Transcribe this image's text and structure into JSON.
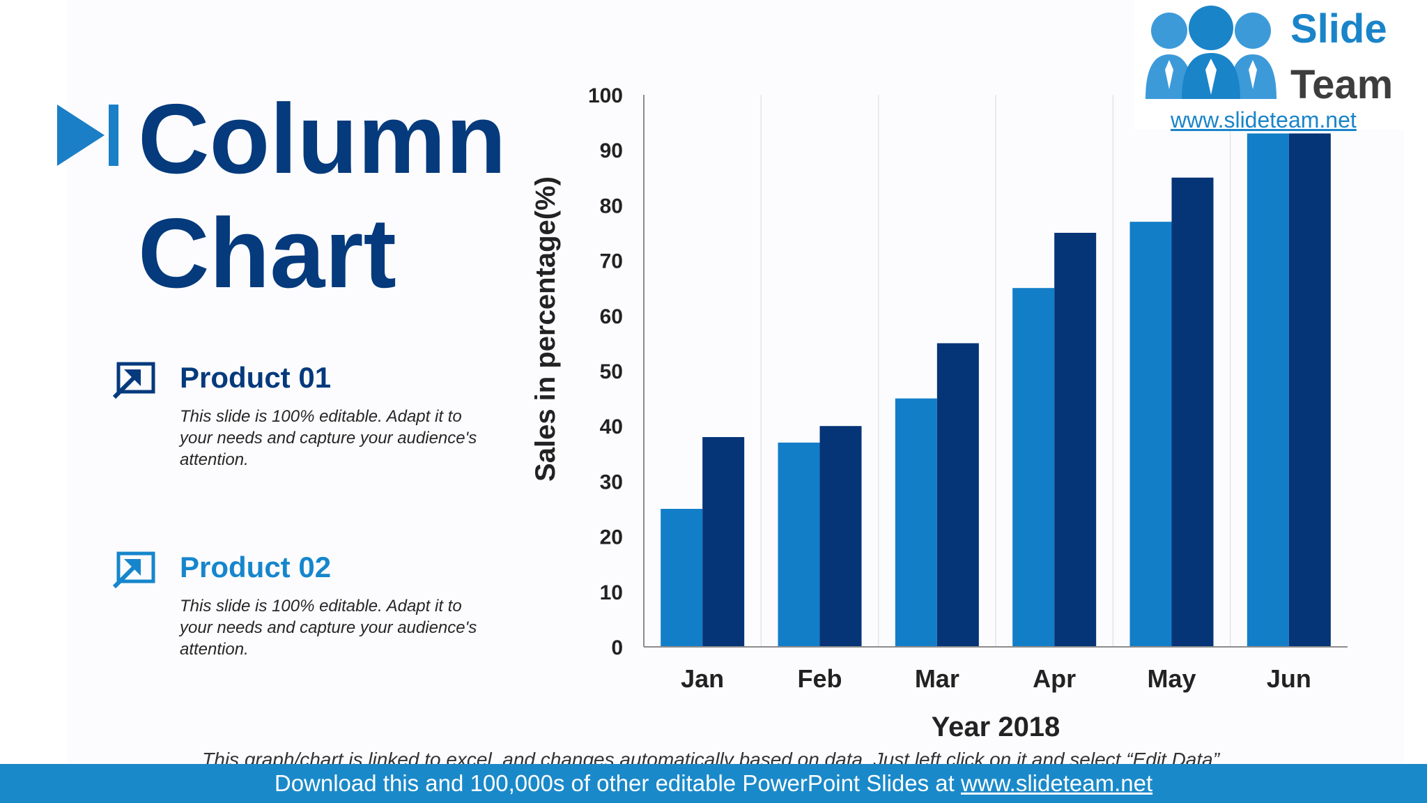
{
  "title": {
    "line1": "Column",
    "line2": "Chart"
  },
  "colors": {
    "title": "#053a7c",
    "product_01": "#053a7c",
    "product_02": "#1686cc",
    "series_1": "#137ec8",
    "series_2": "#053477",
    "footer_bg": "#1a89c9"
  },
  "products": [
    {
      "name": "Product 01",
      "icon": "expand-arrow-icon",
      "description": "This slide is 100% editable. Adapt it to your needs and capture your audience's attention."
    },
    {
      "name": "Product 02",
      "icon": "expand-arrow-icon",
      "description": "This slide is 100% editable. Adapt it to your needs and capture your audience's attention."
    }
  ],
  "chart_data": {
    "type": "bar",
    "categories": [
      "Jan",
      "Feb",
      "Mar",
      "Apr",
      "May",
      "Jun"
    ],
    "series": [
      {
        "values": [
          25,
          37,
          45,
          65,
          77,
          93
        ]
      },
      {
        "values": [
          38,
          40,
          55,
          75,
          85,
          93
        ]
      }
    ],
    "xlabel": "Year 2018",
    "ylabel": "Sales in percentage(%)",
    "ylim": [
      0,
      100
    ],
    "yticks": [
      0,
      10,
      20,
      30,
      40,
      50,
      60,
      70,
      80,
      90,
      100
    ],
    "grid": "vertical category separators",
    "legend": "none"
  },
  "logo": {
    "line1": "Slide",
    "line2": "Team",
    "url": "www.slideteam.net",
    "icon": "team-people-icon"
  },
  "note": "This graph/chart is linked to excel, and changes automatically based on data. Just left click on it and select “Edit Data”.",
  "footer": {
    "text": "Download this and 100,000s of other editable PowerPoint Slides at ",
    "url": "www.slideteam.net"
  }
}
